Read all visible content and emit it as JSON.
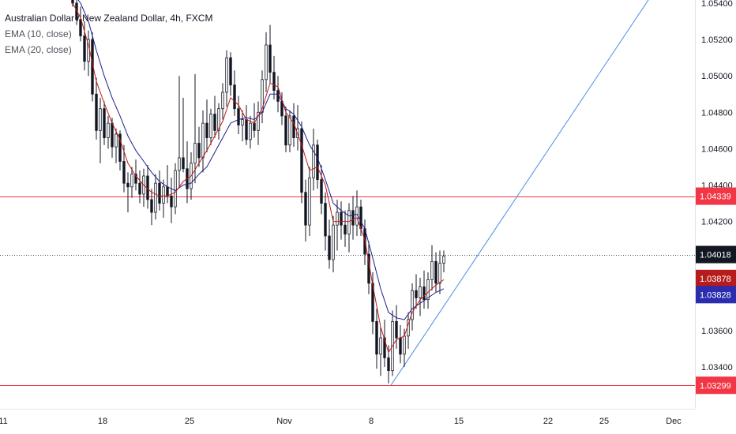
{
  "legend": {
    "title": "Australian Dollar / New Zealand Dollar, 4h, FXCM",
    "ema10": "EMA (10, close)",
    "ema20": "EMA (20, close)"
  },
  "colors": {
    "up": "#131722",
    "down": "#131722",
    "ema10": "#c2181a",
    "ema20": "#1d1f8c",
    "resistance": "#f23645",
    "trendline": "#4a90d9",
    "last_price_bg": "#131722",
    "ema10_bg": "#b71c1c",
    "ema20_bg": "#2b2cae",
    "level_bg": "#f23645"
  },
  "chart_data": {
    "type": "candlestick",
    "symbol": "Australian Dollar / New Zealand Dollar",
    "timeframe": "4h",
    "source": "FXCM",
    "ylim": [
      1.0315,
      1.0545
    ],
    "y_ticks": [
      "1.05400",
      "1.05200",
      "1.05000",
      "1.04800",
      "1.04600",
      "1.04400",
      "1.04200",
      "1.03600",
      "1.03400"
    ],
    "y_tick_values": [
      1.054,
      1.052,
      1.05,
      1.048,
      1.046,
      1.044,
      1.042,
      1.036,
      1.034
    ],
    "x_ticks": [
      {
        "label": "11",
        "slot": 4
      },
      {
        "label": "18",
        "slot": 130
      },
      {
        "label": "25",
        "slot": 240
      },
      {
        "label": "Nov",
        "slot": 360
      },
      {
        "label": "8",
        "slot": 470
      },
      {
        "label": "15",
        "slot": 581
      },
      {
        "label": "22",
        "slot": 694
      },
      {
        "label": "25",
        "slot": 765
      },
      {
        "label": "Dec",
        "slot": 853
      }
    ],
    "x_slot_range": [
      0,
      880
    ],
    "price_labels": [
      {
        "id": "resistance",
        "text": "1.04339",
        "value": 1.04339
      },
      {
        "id": "last_price",
        "text": "1.04018",
        "value": 1.04018
      },
      {
        "id": "ema10",
        "text": "1.03878",
        "value": 1.03878
      },
      {
        "id": "ema20",
        "text": "1.03828",
        "value": 1.03828
      },
      {
        "id": "support",
        "text": "1.03299",
        "value": 1.03299
      }
    ],
    "horizontal_levels": [
      {
        "name": "resistance",
        "value": 1.04339,
        "style": "solid"
      },
      {
        "name": "support",
        "value": 1.03299,
        "style": "solid"
      },
      {
        "name": "last_price",
        "value": 1.04018,
        "style": "dotted"
      }
    ],
    "trendline": {
      "from": {
        "slot": 495,
        "value": 1.03299
      },
      "to": {
        "slot": 826,
        "value": 1.0545
      }
    },
    "candle_width": 2.6,
    "ohlc": [
      [
        92,
        1.0546,
        1.0548,
        1.0538,
        1.054
      ],
      [
        97,
        1.054,
        1.0544,
        1.0528,
        1.0531
      ],
      [
        102,
        1.0531,
        1.0538,
        1.0519,
        1.0522
      ],
      [
        107,
        1.0522,
        1.053,
        1.0503,
        1.0508
      ],
      [
        112,
        1.0508,
        1.0525,
        1.05,
        1.052
      ],
      [
        117,
        1.052,
        1.0524,
        1.0486,
        1.049
      ],
      [
        122,
        1.049,
        1.0499,
        1.0465,
        1.047
      ],
      [
        127,
        1.047,
        1.0488,
        1.0452,
        1.0482
      ],
      [
        132,
        1.0482,
        1.0486,
        1.0462,
        1.0466
      ],
      [
        137,
        1.0466,
        1.0478,
        1.046,
        1.0474
      ],
      [
        142,
        1.0474,
        1.0477,
        1.0455,
        1.0461
      ],
      [
        147,
        1.0461,
        1.0471,
        1.0452,
        1.0468
      ],
      [
        152,
        1.0468,
        1.047,
        1.0448,
        1.0453
      ],
      [
        157,
        1.0453,
        1.0462,
        1.0436,
        1.0441
      ],
      [
        162,
        1.0441,
        1.0447,
        1.0425,
        1.0439
      ],
      [
        167,
        1.0439,
        1.045,
        1.0433,
        1.0446
      ],
      [
        172,
        1.0446,
        1.0454,
        1.0437,
        1.0441
      ],
      [
        177,
        1.0441,
        1.0448,
        1.043,
        1.0435
      ],
      [
        182,
        1.0435,
        1.0449,
        1.0428,
        1.0445
      ],
      [
        187,
        1.0445,
        1.0451,
        1.0427,
        1.0432
      ],
      [
        192,
        1.0432,
        1.0438,
        1.0418,
        1.0425
      ],
      [
        197,
        1.0425,
        1.0446,
        1.0421,
        1.0441
      ],
      [
        202,
        1.0441,
        1.0448,
        1.0426,
        1.043
      ],
      [
        207,
        1.043,
        1.0443,
        1.0422,
        1.0439
      ],
      [
        212,
        1.0439,
        1.0451,
        1.043,
        1.0434
      ],
      [
        217,
        1.0434,
        1.0444,
        1.0419,
        1.0428
      ],
      [
        222,
        1.0428,
        1.0452,
        1.0424,
        1.0448
      ],
      [
        227,
        1.0448,
        1.05,
        1.0439,
        1.0455
      ],
      [
        232,
        1.0455,
        1.0488,
        1.0447,
        1.0449
      ],
      [
        237,
        1.0449,
        1.0464,
        1.043,
        1.0438
      ],
      [
        242,
        1.0438,
        1.0458,
        1.0432,
        1.0452
      ],
      [
        247,
        1.0452,
        1.0501,
        1.0441,
        1.0463
      ],
      [
        252,
        1.0463,
        1.0472,
        1.045,
        1.0455
      ],
      [
        257,
        1.0455,
        1.0481,
        1.0447,
        1.0474
      ],
      [
        262,
        1.0474,
        1.0487,
        1.0458,
        1.0466
      ],
      [
        267,
        1.0466,
        1.0482,
        1.0462,
        1.0479
      ],
      [
        272,
        1.0479,
        1.0489,
        1.0466,
        1.047
      ],
      [
        277,
        1.047,
        1.0485,
        1.0465,
        1.0482
      ],
      [
        282,
        1.0482,
        1.0496,
        1.0476,
        1.0491
      ],
      [
        287,
        1.0491,
        1.0514,
        1.0483,
        1.051
      ],
      [
        292,
        1.051,
        1.0513,
        1.0489,
        1.0495
      ],
      [
        297,
        1.0495,
        1.0503,
        1.0478,
        1.0482
      ],
      [
        302,
        1.0482,
        1.0489,
        1.0468,
        1.0473
      ],
      [
        307,
        1.0473,
        1.0481,
        1.0464,
        1.0476
      ],
      [
        312,
        1.0476,
        1.0484,
        1.0462,
        1.0465
      ],
      [
        317,
        1.0465,
        1.0478,
        1.046,
        1.0474
      ],
      [
        322,
        1.0474,
        1.0485,
        1.0466,
        1.047
      ],
      [
        327,
        1.047,
        1.0486,
        1.0462,
        1.048
      ],
      [
        332,
        1.048,
        1.0503,
        1.0474,
        1.0498
      ],
      [
        337,
        1.0498,
        1.0524,
        1.0491,
        1.0517
      ],
      [
        342,
        1.0517,
        1.0528,
        1.0496,
        1.0502
      ],
      [
        347,
        1.0502,
        1.0511,
        1.0487,
        1.0492
      ],
      [
        352,
        1.0492,
        1.05,
        1.048,
        1.0486
      ],
      [
        357,
        1.0486,
        1.0491,
        1.0473,
        1.0478
      ],
      [
        362,
        1.0478,
        1.0483,
        1.0458,
        1.0462
      ],
      [
        367,
        1.0462,
        1.0481,
        1.0458,
        1.0478
      ],
      [
        372,
        1.0478,
        1.0485,
        1.0461,
        1.0466
      ],
      [
        377,
        1.0466,
        1.0484,
        1.0459,
        1.0471
      ],
      [
        382,
        1.0471,
        1.0475,
        1.043,
        1.0436
      ],
      [
        387,
        1.0436,
        1.0443,
        1.0409,
        1.0418
      ],
      [
        392,
        1.0418,
        1.045,
        1.0412,
        1.0444
      ],
      [
        397,
        1.0444,
        1.0471,
        1.0437,
        1.0462
      ],
      [
        402,
        1.0462,
        1.0465,
        1.0438,
        1.0443
      ],
      [
        407,
        1.0443,
        1.0451,
        1.0424,
        1.043
      ],
      [
        412,
        1.043,
        1.0436,
        1.0404,
        1.0412
      ],
      [
        417,
        1.0412,
        1.0421,
        1.0394,
        1.0399
      ],
      [
        422,
        1.0399,
        1.0423,
        1.0392,
        1.0418
      ],
      [
        427,
        1.0418,
        1.0432,
        1.0404,
        1.0425
      ],
      [
        432,
        1.0425,
        1.0431,
        1.041,
        1.0418
      ],
      [
        437,
        1.0418,
        1.0426,
        1.0406,
        1.0413
      ],
      [
        442,
        1.0413,
        1.043,
        1.0403,
        1.0426
      ],
      [
        447,
        1.0426,
        1.0434,
        1.041,
        1.0418
      ],
      [
        452,
        1.0418,
        1.0437,
        1.0412,
        1.0428
      ],
      [
        457,
        1.0428,
        1.0432,
        1.0412,
        1.0416
      ],
      [
        462,
        1.0416,
        1.0421,
        1.0396,
        1.0402
      ],
      [
        467,
        1.0402,
        1.0409,
        1.038,
        1.0386
      ],
      [
        472,
        1.0386,
        1.0392,
        1.0358,
        1.0365
      ],
      [
        477,
        1.0365,
        1.0372,
        1.0339,
        1.0347
      ],
      [
        482,
        1.0347,
        1.0362,
        1.0335,
        1.0356
      ],
      [
        487,
        1.0356,
        1.0366,
        1.034,
        1.0345
      ],
      [
        492,
        1.0345,
        1.0352,
        1.0331,
        1.0338
      ],
      [
        497,
        1.0338,
        1.0371,
        1.0335,
        1.0365
      ],
      [
        502,
        1.0365,
        1.0374,
        1.035,
        1.0356
      ],
      [
        507,
        1.0356,
        1.0363,
        1.0342,
        1.0347
      ],
      [
        512,
        1.0347,
        1.0361,
        1.034,
        1.0357
      ],
      [
        517,
        1.0357,
        1.037,
        1.035,
        1.0366
      ],
      [
        522,
        1.0366,
        1.0386,
        1.036,
        1.0382
      ],
      [
        527,
        1.0382,
        1.0391,
        1.0372,
        1.0378
      ],
      [
        532,
        1.0378,
        1.0389,
        1.0368,
        1.0384
      ],
      [
        537,
        1.0384,
        1.0393,
        1.0372,
        1.0377
      ],
      [
        542,
        1.0377,
        1.0392,
        1.0372,
        1.0388
      ],
      [
        547,
        1.0388,
        1.0407,
        1.0382,
        1.0398
      ],
      [
        552,
        1.0398,
        1.0403,
        1.0381,
        1.0386
      ],
      [
        557,
        1.0386,
        1.0404,
        1.038,
        1.0397
      ],
      [
        562,
        1.0397,
        1.0404,
        1.0392,
        1.0401
      ]
    ],
    "ema10": [
      [
        92,
        1.054
      ],
      [
        102,
        1.0532
      ],
      [
        112,
        1.0517
      ],
      [
        122,
        1.0497
      ],
      [
        132,
        1.0485
      ],
      [
        142,
        1.0474
      ],
      [
        152,
        1.0465
      ],
      [
        162,
        1.0452
      ],
      [
        172,
        1.0445
      ],
      [
        182,
        1.044
      ],
      [
        192,
        1.0436
      ],
      [
        202,
        1.0434
      ],
      [
        212,
        1.0434
      ],
      [
        222,
        1.0436
      ],
      [
        232,
        1.0442
      ],
      [
        242,
        1.0445
      ],
      [
        252,
        1.0452
      ],
      [
        262,
        1.0459
      ],
      [
        272,
        1.0467
      ],
      [
        282,
        1.0475
      ],
      [
        292,
        1.0488
      ],
      [
        302,
        1.0484
      ],
      [
        312,
        1.0476
      ],
      [
        322,
        1.0474
      ],
      [
        332,
        1.0482
      ],
      [
        342,
        1.0496
      ],
      [
        352,
        1.0494
      ],
      [
        362,
        1.048
      ],
      [
        372,
        1.0474
      ],
      [
        382,
        1.0462
      ],
      [
        392,
        1.0448
      ],
      [
        402,
        1.045
      ],
      [
        412,
        1.044
      ],
      [
        422,
        1.042
      ],
      [
        432,
        1.042
      ],
      [
        442,
        1.042
      ],
      [
        452,
        1.0422
      ],
      [
        462,
        1.041
      ],
      [
        472,
        1.0385
      ],
      [
        482,
        1.0362
      ],
      [
        492,
        1.0348
      ],
      [
        502,
        1.0355
      ],
      [
        512,
        1.0357
      ],
      [
        522,
        1.037
      ],
      [
        532,
        1.0377
      ],
      [
        542,
        1.0381
      ],
      [
        552,
        1.0385
      ],
      [
        562,
        1.0388
      ]
    ],
    "ema20": [
      [
        92,
        1.0546
      ],
      [
        102,
        1.054
      ],
      [
        112,
        1.053
      ],
      [
        122,
        1.0514
      ],
      [
        132,
        1.05
      ],
      [
        142,
        1.0488
      ],
      [
        152,
        1.0478
      ],
      [
        162,
        1.0467
      ],
      [
        172,
        1.0459
      ],
      [
        182,
        1.0453
      ],
      [
        192,
        1.0447
      ],
      [
        202,
        1.0442
      ],
      [
        212,
        1.0439
      ],
      [
        222,
        1.0437
      ],
      [
        232,
        1.044
      ],
      [
        242,
        1.0441
      ],
      [
        252,
        1.0446
      ],
      [
        262,
        1.045
      ],
      [
        272,
        1.0458
      ],
      [
        282,
        1.0466
      ],
      [
        292,
        1.0474
      ],
      [
        302,
        1.0476
      ],
      [
        312,
        1.0477
      ],
      [
        322,
        1.0476
      ],
      [
        332,
        1.048
      ],
      [
        342,
        1.049
      ],
      [
        352,
        1.049
      ],
      [
        362,
        1.0482
      ],
      [
        372,
        1.0479
      ],
      [
        382,
        1.0472
      ],
      [
        392,
        1.0462
      ],
      [
        402,
        1.0455
      ],
      [
        412,
        1.0443
      ],
      [
        422,
        1.043
      ],
      [
        432,
        1.0426
      ],
      [
        442,
        1.0423
      ],
      [
        452,
        1.0424
      ],
      [
        462,
        1.0416
      ],
      [
        472,
        1.04
      ],
      [
        482,
        1.0383
      ],
      [
        492,
        1.037
      ],
      [
        502,
        1.0367
      ],
      [
        512,
        1.0366
      ],
      [
        522,
        1.0372
      ],
      [
        532,
        1.0375
      ],
      [
        542,
        1.0378
      ],
      [
        552,
        1.0381
      ],
      [
        562,
        1.0383
      ]
    ]
  }
}
